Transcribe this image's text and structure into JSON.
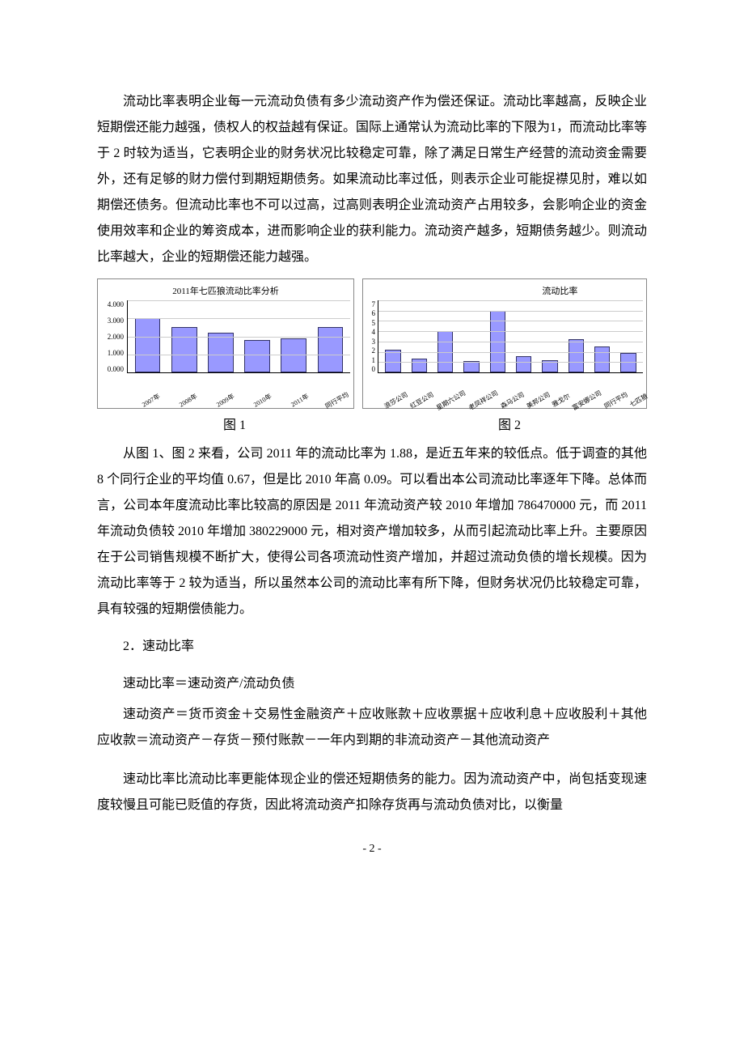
{
  "paragraphs": {
    "p1": "流动比率表明企业每一元流动负债有多少流动资产作为偿还保证。流动比率越高，反映企业短期偿还能力越强，债权人的权益越有保证。国际上通常认为流动比率的下限为1，而流动比率等于 2 时较为适当，它表明企业的财务状况比较稳定可靠，除了满足日常生产经营的流动资金需要外，还有足够的财力偿付到期短期债务。如果流动比率过低，则表示企业可能捉襟见肘，难以如期偿还债务。但流动比率也不可以过高，过高则表明企业流动资产占用较多，会影响企业的资金使用效率和企业的筹资成本，进而影响企业的获利能力。流动资产越多，短期债务越少。则流动比率越大，企业的短期偿还能力越强。",
    "p2": "从图 1、图 2 来看，公司 2011 年的流动比率为 1.88，是近五年来的较低点。低于调查的其他 8 个同行企业的平均值 0.67，但是比 2010 年高 0.09。可以看出本公司流动比率逐年下降。总体而言，公司本年度流动比率比较高的原因是 2011 年流动资产较 2010 年增加 786470000 元，而 2011 年流动负债较 2010 年增加 380229000 元，相对资产增加较多，从而引起流动比率上升。主要原因在于公司销售规模不断扩大，使得公司各项流动性资产增加，并超过流动负债的增长规模。因为流动比率等于 2 较为适当，所以虽然本公司的流动比率有所下降，但财务状况仍比较稳定可靠，具有较强的短期偿债能力。",
    "section2": "2．速动比率",
    "formula1": "速动比率＝速动资产/流动负债",
    "formula2": "速动资产＝货币资金＋交易性金融资产＋应收账款＋应收票据＋应收利息＋应收股利＋其他应收款＝流动资产－存货－预付账款－一年内到期的非流动资产－其他流动资产",
    "p3": "速动比率比流动比率更能体现企业的偿还短期债务的能力。因为流动资产中，尚包括变现速度较慢且可能已贬值的存货，因此将流动资产扣除存货再与流动负债对比，以衡量"
  },
  "captions": {
    "fig1": "图 1",
    "fig2": "图 2"
  },
  "chart1": {
    "title": "2011年七匹狼流动比率分析",
    "type": "bar",
    "categories": [
      "2007年",
      "2008年",
      "2009年",
      "2010年",
      "2011年",
      "同行平均"
    ],
    "values": [
      3.0,
      2.5,
      2.2,
      1.8,
      1.9,
      2.5
    ],
    "bar_color": "#9999ff",
    "bar_border": "#333366",
    "ylim": [
      0,
      4
    ],
    "ytick_step": 1.0,
    "yticks": [
      "4.000",
      "3.000",
      "2.000",
      "1.000",
      "0.000"
    ],
    "background_color": "#ffffff",
    "grid_color": "#cccccc",
    "title_fontsize": 11,
    "label_fontsize": 9
  },
  "chart2": {
    "title": "流动比率",
    "type": "bar",
    "categories": [
      "浪莎公司",
      "红豆公司",
      "星期六公司",
      "老凤祥公司",
      "森马公司",
      "美邦公司",
      "雅戈尔",
      "富安娜公司",
      "同行平均",
      "七匹狼"
    ],
    "values": [
      2.2,
      1.3,
      4.0,
      1.1,
      6.0,
      1.6,
      1.2,
      3.2,
      2.5,
      1.9
    ],
    "bar_color": "#9999ff",
    "bar_border": "#333366",
    "ylim": [
      0,
      7
    ],
    "ytick_step": 1,
    "yticks": [
      "7",
      "6",
      "5",
      "4",
      "3",
      "2",
      "1",
      "0"
    ],
    "background_color": "#ffffff",
    "grid_color": "#cccccc",
    "title_fontsize": 11,
    "label_fontsize": 9
  },
  "page_number": "- 2 -"
}
